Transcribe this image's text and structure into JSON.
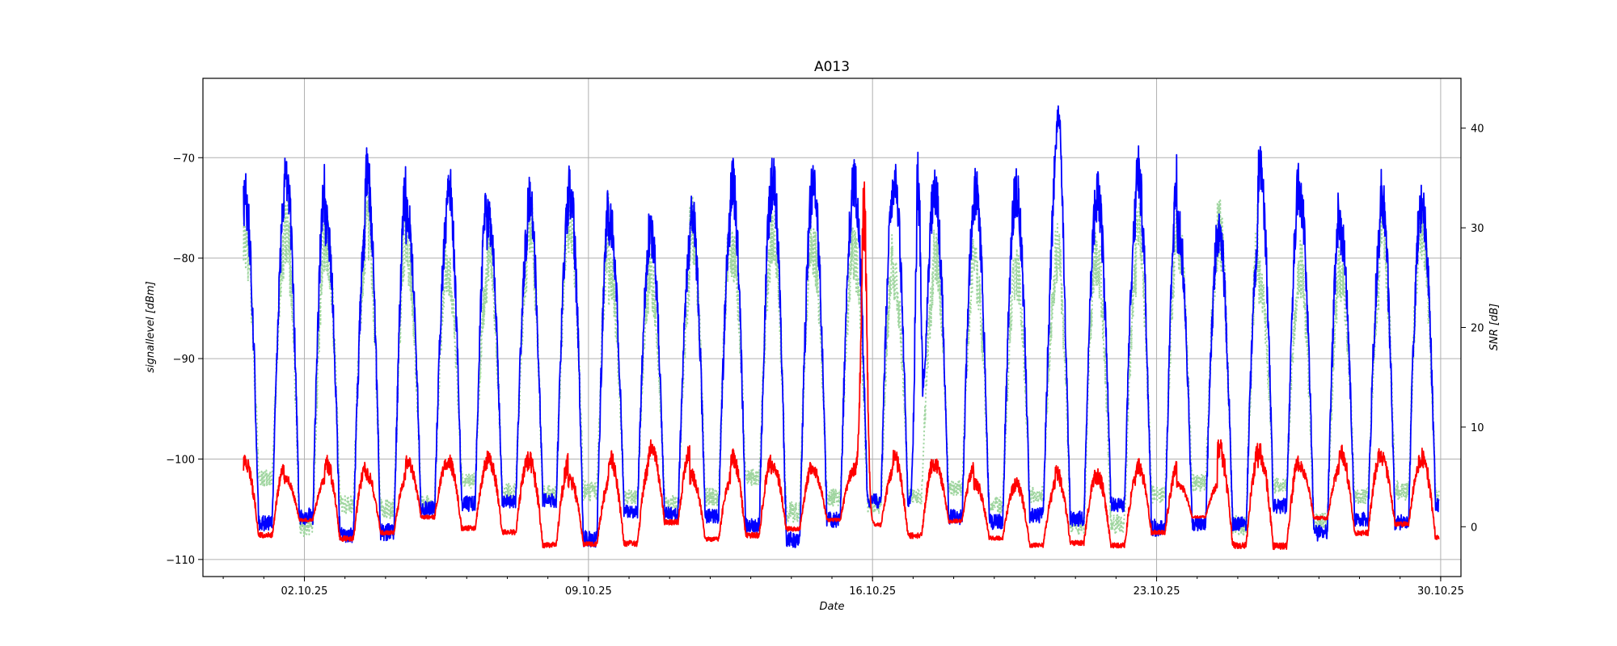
{
  "chart_data": {
    "type": "line",
    "title": "A013",
    "xlabel": "Date",
    "ylabel_left": "signallevel [dBm]",
    "ylabel_right": "SNR [dB]",
    "x_ticks": [
      "02.10.25",
      "09.10.25",
      "16.10.25",
      "23.10.25",
      "30.10.25"
    ],
    "x_range": [
      "2025-09-29T12:00",
      "2025-10-30T12:00"
    ],
    "x_data_range": [
      "2025-09-30T12:00",
      "2025-10-29T23:00"
    ],
    "y_left_ticks": [
      -70,
      -80,
      -90,
      -100,
      -110
    ],
    "y_left_range": [
      -111.7,
      -62.1
    ],
    "y_right_ticks": [
      40,
      30,
      20,
      10,
      0
    ],
    "y_right_range": [
      -5,
      45
    ],
    "grid": true,
    "series": [
      {
        "axis": "left",
        "style": "solid",
        "color": "#0000ff",
        "description": "signal level, daily cycle",
        "peak_range": [
          -78,
          -71
        ],
        "trough_range": [
          -108,
          -104
        ],
        "spikes": [
          {
            "x": "2025-10-17T03:00",
            "y": -68
          },
          {
            "x": "2025-10-20T14:00",
            "y": -64.5
          }
        ]
      },
      {
        "axis": "right",
        "style": "dotted",
        "color": "#9fd59f",
        "description": "SNR, daily cycle",
        "peak_range": [
          24,
          31
        ],
        "trough_range": [
          0,
          6
        ]
      },
      {
        "axis": "right",
        "style": "solid",
        "color": "#ff0000",
        "description": "SNR, low daily cycle",
        "peak_range": [
          4,
          8
        ],
        "trough_range": [
          -2,
          1
        ],
        "spikes": [
          {
            "x": "2025-10-15T19:00",
            "y": 36
          }
        ]
      }
    ]
  }
}
